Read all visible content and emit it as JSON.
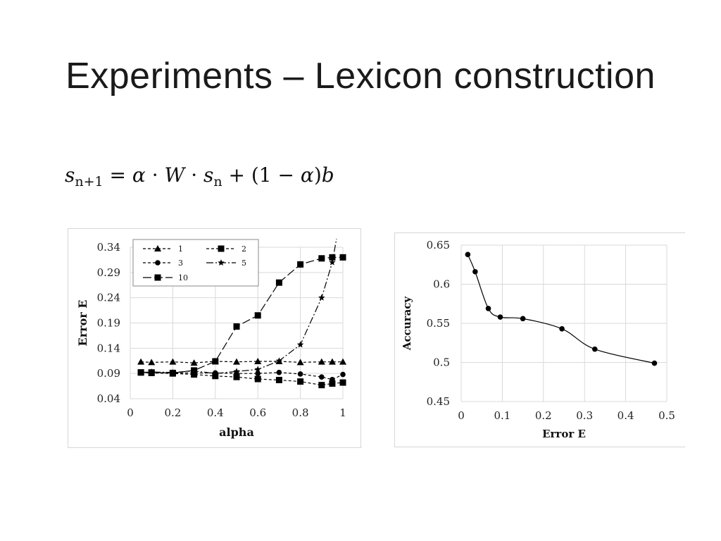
{
  "slide": {
    "title": "Experiments – Lexicon construction",
    "formula": {
      "lhs_var": "s",
      "lhs_sub": "n+1",
      "eq": " = ",
      "alpha1": "α",
      "dot1": " · ",
      "W": "W",
      "dot2": " · ",
      "s_var": "s",
      "s_sub": "n",
      "rest": " + (1 − ",
      "alpha2": "α",
      "close": ")",
      "b": "b"
    }
  },
  "chart_data": [
    {
      "type": "line",
      "xlabel": "alpha",
      "ylabel": "Error E",
      "xlim": [
        0,
        1
      ],
      "ylim": [
        0.04,
        0.34
      ],
      "xticks": [
        "0",
        "0.2",
        "0.4",
        "0.6",
        "0.8",
        "1"
      ],
      "yticks": [
        "0.04",
        "0.09",
        "0.14",
        "0.19",
        "0.24",
        "0.29",
        "0.34"
      ],
      "grid": true,
      "legend_position": "top-left",
      "legend": [
        "1",
        "2",
        "3",
        "5",
        "10"
      ],
      "series": [
        {
          "name": "1",
          "marker": "triangle",
          "dash": "4,3",
          "x": [
            0.05,
            0.1,
            0.2,
            0.3,
            0.4,
            0.5,
            0.6,
            0.7,
            0.8,
            0.9,
            0.95,
            1.0
          ],
          "y": [
            0.113,
            0.112,
            0.113,
            0.111,
            0.114,
            0.113,
            0.114,
            0.114,
            0.112,
            0.113,
            0.113,
            0.113
          ]
        },
        {
          "name": "2",
          "marker": "square",
          "dash": "4,3",
          "x": [
            0.05,
            0.1,
            0.2,
            0.3,
            0.4,
            0.5,
            0.6,
            0.7,
            0.8,
            0.9,
            0.95,
            1.0
          ],
          "y": [
            0.092,
            0.091,
            0.09,
            0.088,
            0.085,
            0.083,
            0.079,
            0.077,
            0.074,
            0.067,
            0.07,
            0.072
          ]
        },
        {
          "name": "3",
          "marker": "circle",
          "dash": "4,3",
          "x": [
            0.05,
            0.1,
            0.2,
            0.3,
            0.4,
            0.5,
            0.6,
            0.7,
            0.8,
            0.9,
            0.95,
            1.0
          ],
          "y": [
            0.092,
            0.092,
            0.091,
            0.091,
            0.091,
            0.09,
            0.09,
            0.092,
            0.089,
            0.083,
            0.078,
            0.088
          ]
        },
        {
          "name": "5",
          "marker": "star",
          "dash": "10,3,2,3",
          "x": [
            0.05,
            0.1,
            0.2,
            0.3,
            0.4,
            0.5,
            0.6,
            0.7,
            0.8,
            0.9,
            0.95
          ],
          "y": [
            0.092,
            0.093,
            0.092,
            0.095,
            0.09,
            0.094,
            0.098,
            0.115,
            0.147,
            0.24,
            0.31
          ]
        },
        {
          "name": "10",
          "marker": "square",
          "dash": "12,4",
          "x": [
            0.05,
            0.1,
            0.2,
            0.3,
            0.4,
            0.5,
            0.6,
            0.7,
            0.8,
            0.9,
            0.95,
            1.0
          ],
          "y": [
            0.092,
            0.092,
            0.091,
            0.096,
            0.114,
            0.183,
            0.205,
            0.27,
            0.306,
            0.318,
            0.32,
            0.32
          ]
        }
      ]
    },
    {
      "type": "line",
      "xlabel": "Error E",
      "ylabel": "Accuracy",
      "xlim": [
        0,
        0.5
      ],
      "ylim": [
        0.45,
        0.65
      ],
      "xticks": [
        "0",
        "0.1",
        "0.2",
        "0.3",
        "0.4",
        "0.5"
      ],
      "yticks": [
        "0.45",
        "0.5",
        "0.55",
        "0.6",
        "0.65"
      ],
      "grid": true,
      "series": [
        {
          "marker": "circle",
          "smooth": true,
          "x": [
            0.016,
            0.034,
            0.066,
            0.095,
            0.15,
            0.245,
            0.325,
            0.47
          ],
          "y": [
            0.638,
            0.616,
            0.569,
            0.558,
            0.556,
            0.543,
            0.517,
            0.499
          ]
        }
      ]
    }
  ]
}
